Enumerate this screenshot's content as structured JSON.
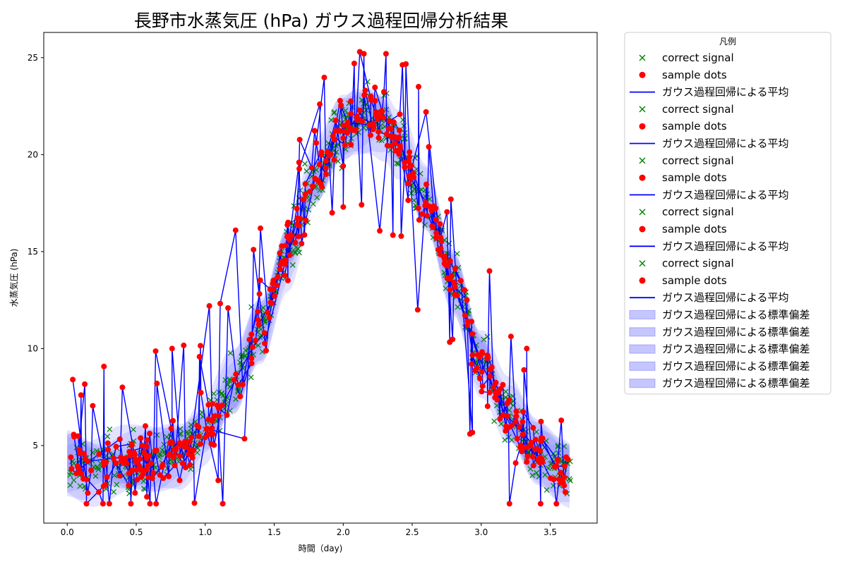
{
  "chart_data": {
    "type": "line",
    "title": "長野市水蒸気圧 (hPa) ガウス過程回帰分析結果",
    "xlabel": "時間（day)",
    "ylabel": "水蒸気圧 (hPa)",
    "xlim": [
      -0.17,
      3.84
    ],
    "ylim": [
      1.0,
      26.3
    ],
    "xticks": [
      0.0,
      0.5,
      1.0,
      1.5,
      2.0,
      2.5,
      3.0,
      3.5
    ],
    "xtick_labels": [
      "0.0",
      "0.5",
      "1.0",
      "1.5",
      "2.0",
      "2.5",
      "3.0",
      "3.5"
    ],
    "yticks": [
      5,
      10,
      15,
      20,
      25
    ],
    "ytick_labels": [
      "5",
      "10",
      "15",
      "20",
      "25"
    ],
    "grid": false,
    "legend": {
      "title": "凡例",
      "placement": "outside-right-top",
      "entries": [
        {
          "label": "correct signal",
          "kind": "marker-x",
          "color": "#008000"
        },
        {
          "label": "sample dots",
          "kind": "marker-dot",
          "color": "#ff0000"
        },
        {
          "label": "ガウス過程回帰による平均",
          "kind": "line",
          "color": "#0000ff"
        },
        {
          "label": "correct signal",
          "kind": "marker-x",
          "color": "#008000"
        },
        {
          "label": "sample dots",
          "kind": "marker-dot",
          "color": "#ff0000"
        },
        {
          "label": "ガウス過程回帰による平均",
          "kind": "line",
          "color": "#0000ff"
        },
        {
          "label": "correct signal",
          "kind": "marker-x",
          "color": "#008000"
        },
        {
          "label": "sample dots",
          "kind": "marker-dot",
          "color": "#ff0000"
        },
        {
          "label": "ガウス過程回帰による平均",
          "kind": "line",
          "color": "#0000ff"
        },
        {
          "label": "correct signal",
          "kind": "marker-x",
          "color": "#008000"
        },
        {
          "label": "sample dots",
          "kind": "marker-dot",
          "color": "#ff0000"
        },
        {
          "label": "ガウス過程回帰による平均",
          "kind": "line",
          "color": "#0000ff"
        },
        {
          "label": "correct signal",
          "kind": "marker-x",
          "color": "#008000"
        },
        {
          "label": "sample dots",
          "kind": "marker-dot",
          "color": "#ff0000"
        },
        {
          "label": "ガウス過程回帰による平均",
          "kind": "line",
          "color": "#0000ff"
        },
        {
          "label": "ガウス過程回帰による標準偏差",
          "kind": "band",
          "color": "#8080ff"
        },
        {
          "label": "ガウス過程回帰による標準偏差",
          "kind": "band",
          "color": "#8080ff"
        },
        {
          "label": "ガウス過程回帰による標準偏差",
          "kind": "band",
          "color": "#8080ff"
        },
        {
          "label": "ガウス過程回帰による標準偏差",
          "kind": "band",
          "color": "#8080ff"
        },
        {
          "label": "ガウス過程回帰による標準偏差",
          "kind": "band",
          "color": "#8080ff"
        }
      ]
    },
    "colors": {
      "correct_signal": "#008000",
      "sample_dots": "#ff0000",
      "mean": "#0000ff",
      "band": "#8080ff"
    },
    "gp_mean_trend": {
      "x": [
        0.0,
        0.2,
        0.4,
        0.6,
        0.8,
        1.0,
        1.2,
        1.4,
        1.6,
        1.8,
        2.0,
        2.1,
        2.2,
        2.3,
        2.4,
        2.6,
        2.8,
        3.0,
        3.2,
        3.4,
        3.6,
        3.65
      ],
      "y": [
        4.2,
        3.9,
        4.0,
        4.2,
        4.7,
        5.8,
        8.0,
        11.0,
        15.0,
        18.8,
        21.3,
        21.8,
        22.0,
        21.7,
        20.5,
        17.5,
        13.5,
        9.5,
        6.5,
        4.6,
        3.9,
        3.8
      ]
    },
    "gp_std": 0.9,
    "sample_dots_notable": {
      "x": [
        0.04,
        0.1,
        0.4,
        0.6,
        0.65,
        0.76,
        1.03,
        1.22,
        1.35,
        1.4,
        1.6,
        1.68,
        1.83,
        1.92,
        2.0,
        2.08,
        2.12,
        2.15,
        2.2,
        2.31,
        2.38,
        2.42,
        2.54,
        2.6,
        2.62,
        2.78,
        2.9,
        2.93,
        3.06,
        3.25,
        3.31,
        3.33,
        3.58,
        3.61
      ],
      "y": [
        8.4,
        7.6,
        8.0,
        2.0,
        8.2,
        10.0,
        12.2,
        16.1,
        15.1,
        16.2,
        16.5,
        19.6,
        22.6,
        17.0,
        17.3,
        24.7,
        25.3,
        25.2,
        23.0,
        25.2,
        20.2,
        15.8,
        12.0,
        22.2,
        20.4,
        17.7,
        11.2,
        9.2,
        14.0,
        4.1,
        8.9,
        10.0,
        6.3,
        2.6
      ]
    }
  }
}
